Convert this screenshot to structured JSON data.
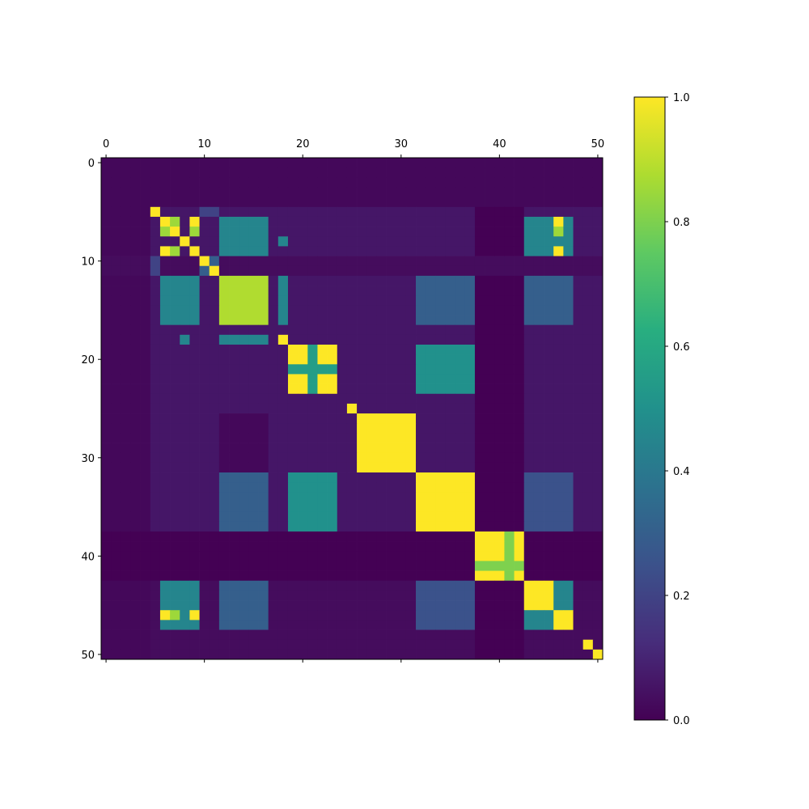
{
  "chart_data": {
    "type": "heatmap",
    "title": "",
    "xlabel": "",
    "ylabel": "",
    "n": 51,
    "xlim": [
      -0.5,
      50.5
    ],
    "ylim": [
      50.5,
      -0.5
    ],
    "x_ticks": [
      0,
      10,
      20,
      30,
      40,
      50
    ],
    "y_ticks": [
      0,
      10,
      20,
      30,
      40,
      50
    ],
    "x_tick_labels": [
      "0",
      "10",
      "20",
      "30",
      "40",
      "50"
    ],
    "y_tick_labels": [
      "0",
      "10",
      "20",
      "30",
      "40",
      "50"
    ],
    "x_axis_position": "top",
    "grid": false,
    "colormap": "viridis",
    "color_range": [
      0,
      1
    ],
    "colorbar": {
      "position": "right",
      "ticks": [
        0.0,
        0.2,
        0.4,
        0.6,
        0.8,
        1.0
      ],
      "tick_labels": [
        "0.0",
        "0.2",
        "0.4",
        "0.6",
        "0.8",
        "1.0"
      ]
    },
    "background_value": 0.02,
    "blocks": [
      {
        "rows": [
          5,
          37
        ],
        "cols": [
          5,
          50
        ],
        "value": 0.06
      },
      {
        "rows": [
          38,
          50
        ],
        "cols": [
          5,
          50
        ],
        "value": 0.03
      },
      {
        "rows": [
          38,
          42
        ],
        "cols": [
          0,
          50
        ],
        "value": 0.0
      },
      {
        "rows": [
          5,
          50
        ],
        "cols": [
          38,
          42
        ],
        "value": 0.0
      },
      {
        "rows": [
          10,
          11
        ],
        "cols": [
          10,
          50
        ],
        "value": 0.03
      },
      {
        "rows": [
          10,
          11
        ],
        "cols": [
          0,
          9
        ],
        "value": 0.03
      },
      {
        "rows": [
          26,
          31
        ],
        "cols": [
          12,
          16
        ],
        "value": 0.02
      },
      {
        "rows": [
          6,
          9
        ],
        "cols": [
          12,
          16
        ],
        "value": 0.45
      },
      {
        "rows": [
          12,
          16
        ],
        "cols": [
          6,
          9
        ],
        "value": 0.45
      },
      {
        "rows": [
          12,
          16
        ],
        "cols": [
          12,
          16
        ],
        "value": 0.88
      },
      {
        "rows": [
          19,
          23
        ],
        "cols": [
          19,
          23
        ],
        "value": 1.0
      },
      {
        "rows": [
          19,
          23
        ],
        "cols": [
          21,
          21
        ],
        "value": 0.55
      },
      {
        "rows": [
          21,
          21
        ],
        "cols": [
          19,
          23
        ],
        "value": 0.55
      },
      {
        "rows": [
          26,
          31
        ],
        "cols": [
          26,
          31
        ],
        "value": 1.0
      },
      {
        "rows": [
          32,
          37
        ],
        "cols": [
          32,
          37
        ],
        "value": 1.0
      },
      {
        "rows": [
          38,
          42
        ],
        "cols": [
          38,
          42
        ],
        "value": 1.0
      },
      {
        "rows": [
          38,
          42
        ],
        "cols": [
          41,
          41
        ],
        "value": 0.8
      },
      {
        "rows": [
          41,
          41
        ],
        "cols": [
          38,
          42
        ],
        "value": 0.8
      },
      {
        "rows": [
          43,
          47
        ],
        "cols": [
          43,
          47
        ],
        "value": 1.0
      },
      {
        "rows": [
          43,
          45
        ],
        "cols": [
          46,
          47
        ],
        "value": 0.45
      },
      {
        "rows": [
          46,
          47
        ],
        "cols": [
          43,
          45
        ],
        "value": 0.45
      },
      {
        "rows": [
          32,
          37
        ],
        "cols": [
          12,
          16
        ],
        "value": 0.3
      },
      {
        "rows": [
          12,
          16
        ],
        "cols": [
          32,
          37
        ],
        "value": 0.3
      },
      {
        "rows": [
          32,
          37
        ],
        "cols": [
          19,
          23
        ],
        "value": 0.5
      },
      {
        "rows": [
          19,
          23
        ],
        "cols": [
          32,
          37
        ],
        "value": 0.5
      },
      {
        "rows": [
          43,
          47
        ],
        "cols": [
          32,
          37
        ],
        "value": 0.25
      },
      {
        "rows": [
          32,
          37
        ],
        "cols": [
          43,
          47
        ],
        "value": 0.25
      },
      {
        "rows": [
          43,
          47
        ],
        "cols": [
          6,
          9
        ],
        "value": 0.45
      },
      {
        "rows": [
          6,
          9
        ],
        "cols": [
          43,
          47
        ],
        "value": 0.45
      },
      {
        "rows": [
          43,
          47
        ],
        "cols": [
          12,
          16
        ],
        "value": 0.3
      },
      {
        "rows": [
          12,
          16
        ],
        "cols": [
          43,
          47
        ],
        "value": 0.3
      },
      {
        "rows": [
          18,
          18
        ],
        "cols": [
          12,
          16
        ],
        "value": 0.45
      },
      {
        "rows": [
          12,
          16
        ],
        "cols": [
          18,
          18
        ],
        "value": 0.45
      }
    ],
    "points": [
      {
        "r": 5,
        "c": 5,
        "v": 1.0
      },
      {
        "r": 6,
        "c": 6,
        "v": 1.0
      },
      {
        "r": 7,
        "c": 7,
        "v": 1.0
      },
      {
        "r": 8,
        "c": 8,
        "v": 1.0
      },
      {
        "r": 9,
        "c": 9,
        "v": 1.0
      },
      {
        "r": 10,
        "c": 10,
        "v": 1.0
      },
      {
        "r": 11,
        "c": 11,
        "v": 1.0
      },
      {
        "r": 18,
        "c": 18,
        "v": 1.0
      },
      {
        "r": 25,
        "c": 25,
        "v": 1.0
      },
      {
        "r": 26,
        "c": 26,
        "v": 1.0
      },
      {
        "r": 49,
        "c": 49,
        "v": 1.0
      },
      {
        "r": 50,
        "c": 50,
        "v": 1.0
      },
      {
        "r": 6,
        "c": 7,
        "v": 0.85
      },
      {
        "r": 7,
        "c": 6,
        "v": 0.85
      },
      {
        "r": 6,
        "c": 9,
        "v": 1.0
      },
      {
        "r": 9,
        "c": 6,
        "v": 1.0
      },
      {
        "r": 7,
        "c": 9,
        "v": 0.85
      },
      {
        "r": 9,
        "c": 7,
        "v": 0.85
      },
      {
        "r": 6,
        "c": 46,
        "v": 1.0
      },
      {
        "r": 46,
        "c": 6,
        "v": 1.0
      },
      {
        "r": 7,
        "c": 46,
        "v": 0.85
      },
      {
        "r": 46,
        "c": 7,
        "v": 0.85
      },
      {
        "r": 9,
        "c": 46,
        "v": 1.0
      },
      {
        "r": 46,
        "c": 9,
        "v": 1.0
      },
      {
        "r": 10,
        "c": 10,
        "v": 1.0
      },
      {
        "r": 11,
        "c": 10,
        "v": 0.3
      },
      {
        "r": 10,
        "c": 11,
        "v": 0.3
      },
      {
        "r": 18,
        "c": 8,
        "v": 0.45
      },
      {
        "r": 8,
        "c": 18,
        "v": 0.45
      },
      {
        "r": 5,
        "c": 10,
        "v": 0.2
      },
      {
        "r": 5,
        "c": 11,
        "v": 0.2
      },
      {
        "r": 10,
        "c": 5,
        "v": 0.2
      },
      {
        "r": 11,
        "c": 5,
        "v": 0.2
      }
    ]
  }
}
